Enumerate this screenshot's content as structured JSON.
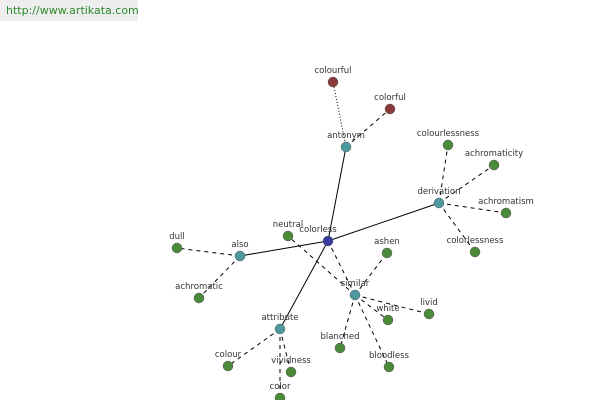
{
  "header": {
    "url": "http://www.artikata.com"
  },
  "nodes": [
    {
      "label": "colorless"
    },
    {
      "label": "antonym"
    },
    {
      "label": "derivation"
    },
    {
      "label": "also"
    },
    {
      "label": "similar"
    },
    {
      "label": "attribute"
    },
    {
      "label": "colourful"
    },
    {
      "label": "colorful"
    },
    {
      "label": "colourlessness"
    },
    {
      "label": "achromaticity"
    },
    {
      "label": "achromatism"
    },
    {
      "label": "colorlessness"
    },
    {
      "label": "dull"
    },
    {
      "label": "achromatic"
    },
    {
      "label": "neutral"
    },
    {
      "label": "ashen"
    },
    {
      "label": "livid"
    },
    {
      "label": "white"
    },
    {
      "label": "blanched"
    },
    {
      "label": "bloodless"
    },
    {
      "label": "colour"
    },
    {
      "label": "vividness"
    },
    {
      "label": "color"
    }
  ]
}
